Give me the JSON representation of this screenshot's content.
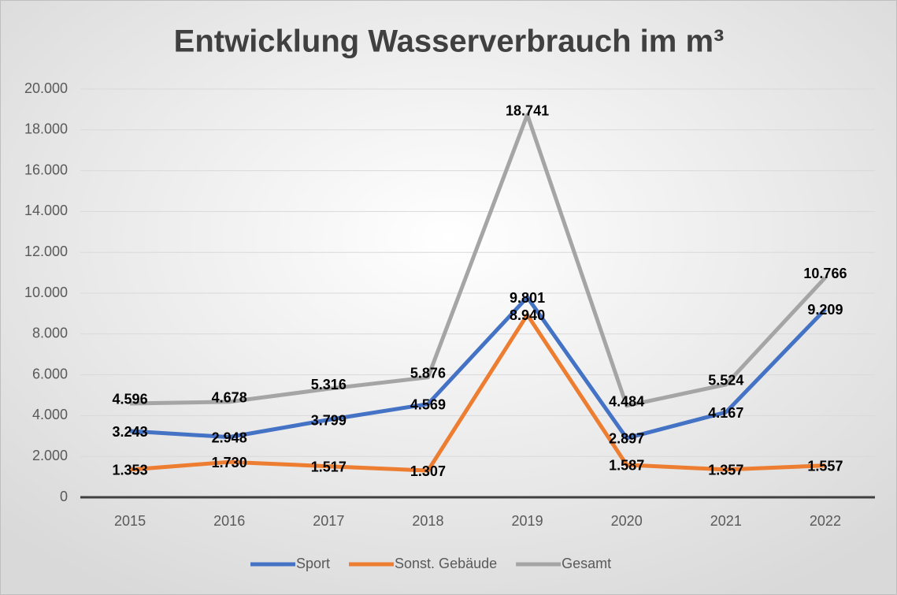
{
  "chart_data": {
    "type": "line",
    "title": "Entwicklung Wasserverbrauch im m³",
    "categories": [
      "2015",
      "2016",
      "2017",
      "2018",
      "2019",
      "2020",
      "2021",
      "2022"
    ],
    "series": [
      {
        "name": "Sport",
        "color": "#4472c4",
        "values": [
          3243,
          2948,
          3799,
          4569,
          9801,
          2897,
          4167,
          9209
        ],
        "value_labels": [
          "3.243",
          "2.948",
          "3.799",
          "4.569",
          "9.801",
          "2.897",
          "4.167",
          "9.209"
        ]
      },
      {
        "name": "Sonst. Gebäude",
        "color": "#ed7d31",
        "values": [
          1353,
          1730,
          1517,
          1307,
          8940,
          1587,
          1357,
          1557
        ],
        "value_labels": [
          "1.353",
          "1.730",
          "1.517",
          "1.307",
          "8.940",
          "1.587",
          "1.357",
          "1.557"
        ]
      },
      {
        "name": "Gesamt",
        "color": "#a5a5a5",
        "values": [
          4596,
          4678,
          5316,
          5876,
          18741,
          4484,
          5524,
          10766
        ],
        "value_labels": [
          "4.596",
          "4.678",
          "5.316",
          "5.876",
          "18.741",
          "4.484",
          "5.524",
          "10.766"
        ]
      }
    ],
    "ylim": [
      0,
      20000
    ],
    "yticks": [
      0,
      {
        "value": 2000,
        "label": "2.000"
      },
      {
        "value": 4000,
        "label": "4.000"
      },
      {
        "value": 6000,
        "label": "6.000"
      },
      {
        "value": 8000,
        "label": "8.000"
      },
      {
        "value": 10000,
        "label": "10.000"
      },
      {
        "value": 12000,
        "label": "12.000"
      },
      {
        "value": 14000,
        "label": "14.000"
      },
      {
        "value": 16000,
        "label": "16.000"
      },
      {
        "value": 18000,
        "label": "18.000"
      },
      {
        "value": 20000,
        "label": "20.000"
      }
    ],
    "grid": true,
    "legend": "bottom"
  }
}
